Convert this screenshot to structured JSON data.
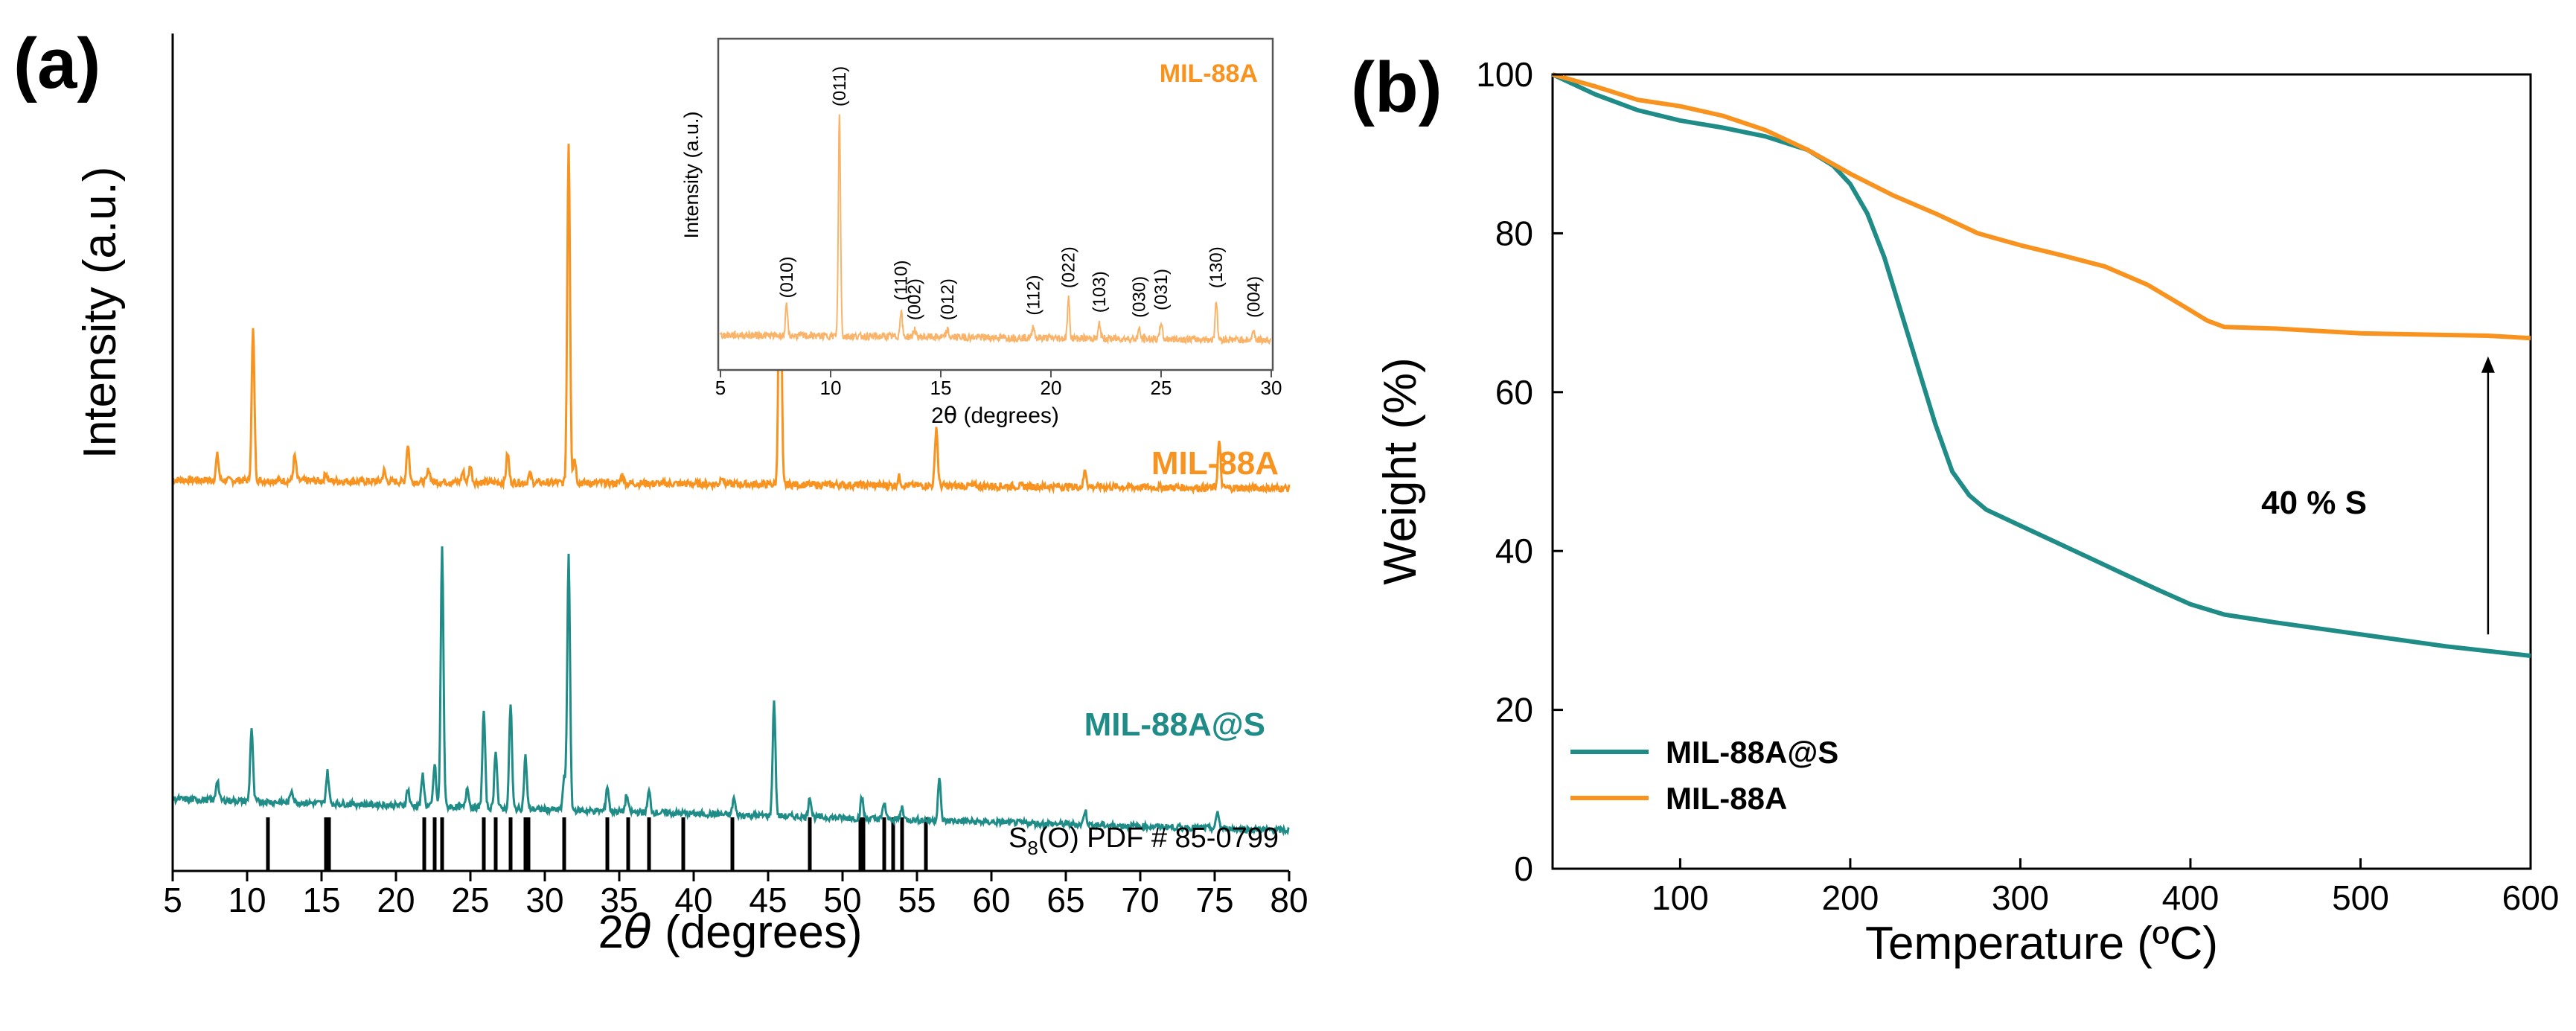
{
  "colors": {
    "orange": "#F7931E",
    "teal": "#1F8C87",
    "axis": "#000000",
    "inset_frame": "#555555",
    "inset_line": "#F9B46A"
  },
  "chart_data": [
    {
      "id": "a",
      "type": "line",
      "panel_label": "(a)",
      "xlabel_prefix": "2",
      "xlabel_symbol": "θ",
      "xlabel_suffix": " (degrees)",
      "ylabel": "Intensity (a.u.)",
      "xlim": [
        5,
        80
      ],
      "xticks": [
        5,
        10,
        15,
        20,
        25,
        30,
        35,
        40,
        45,
        50,
        55,
        60,
        65,
        70,
        75,
        80
      ],
      "y_units": "a.u. (normalized, offset stacked)",
      "series": [
        {
          "name": "MIL-88A",
          "label": "MIL-88A",
          "color": "#F7931E",
          "baseline": 1.8,
          "peaks": [
            {
              "x": 8.0,
              "h": 0.12
            },
            {
              "x": 10.4,
              "h": 0.72
            },
            {
              "x": 13.2,
              "h": 0.12
            },
            {
              "x": 15.3,
              "h": 0.04
            },
            {
              "x": 19.2,
              "h": 0.05
            },
            {
              "x": 20.8,
              "h": 0.18
            },
            {
              "x": 22.2,
              "h": 0.06
            },
            {
              "x": 24.5,
              "h": 0.05
            },
            {
              "x": 25.0,
              "h": 0.08
            },
            {
              "x": 27.5,
              "h": 0.14
            },
            {
              "x": 29.0,
              "h": 0.04
            },
            {
              "x": 31.6,
              "h": 1.62
            },
            {
              "x": 32.0,
              "h": 0.12
            },
            {
              "x": 35.2,
              "h": 0.04
            },
            {
              "x": 41.9,
              "h": 0.04
            },
            {
              "x": 45.8,
              "h": 1.5
            },
            {
              "x": 53.8,
              "h": 0.04
            },
            {
              "x": 56.3,
              "h": 0.28
            },
            {
              "x": 66.3,
              "h": 0.08
            },
            {
              "x": 75.3,
              "h": 0.22
            }
          ]
        },
        {
          "name": "MIL-88A@S",
          "label": "MIL-88A@S",
          "color": "#1F8C87",
          "baseline_start": 0.35,
          "baseline_end": 0.2,
          "peaks": [
            {
              "x": 8.0,
              "h": 0.1
            },
            {
              "x": 10.3,
              "h": 0.35
            },
            {
              "x": 13.0,
              "h": 0.06
            },
            {
              "x": 15.4,
              "h": 0.15
            },
            {
              "x": 20.8,
              "h": 0.08
            },
            {
              "x": 21.8,
              "h": 0.15
            },
            {
              "x": 22.6,
              "h": 0.2
            },
            {
              "x": 23.1,
              "h": 1.23
            },
            {
              "x": 24.8,
              "h": 0.1
            },
            {
              "x": 25.9,
              "h": 0.46
            },
            {
              "x": 26.7,
              "h": 0.28
            },
            {
              "x": 27.7,
              "h": 0.5
            },
            {
              "x": 28.7,
              "h": 0.25
            },
            {
              "x": 31.3,
              "h": 0.15
            },
            {
              "x": 31.6,
              "h": 1.22
            },
            {
              "x": 34.2,
              "h": 0.12
            },
            {
              "x": 35.5,
              "h": 0.08
            },
            {
              "x": 37.0,
              "h": 0.1
            },
            {
              "x": 42.7,
              "h": 0.08
            },
            {
              "x": 45.4,
              "h": 0.55
            },
            {
              "x": 47.8,
              "h": 0.1
            },
            {
              "x": 51.3,
              "h": 0.1
            },
            {
              "x": 52.8,
              "h": 0.08
            },
            {
              "x": 54.0,
              "h": 0.06
            },
            {
              "x": 56.5,
              "h": 0.2
            },
            {
              "x": 66.3,
              "h": 0.07
            },
            {
              "x": 75.2,
              "h": 0.08
            }
          ]
        }
      ],
      "reference": {
        "label_prefix": "S",
        "label_subscript": "8",
        "label_suffix": "(O) PDF # 85-0799",
        "positions": [
          11.4,
          15.3,
          15.5,
          21.9,
          22.6,
          23.1,
          25.9,
          26.7,
          27.7,
          28.7,
          28.9,
          31.3,
          34.2,
          35.6,
          37.0,
          39.3,
          42.6,
          47.8,
          51.2,
          51.4,
          52.8,
          53.4,
          54.0,
          55.6
        ]
      },
      "inset": {
        "title": "MIL-88A",
        "xlabel_prefix": "2",
        "xlabel_symbol": "θ",
        "xlabel_suffix": " (degrees)",
        "ylabel": "Intensity (a.u.)",
        "xlim": [
          5,
          30
        ],
        "xticks": [
          5,
          10,
          15,
          20,
          25,
          30
        ],
        "peaks": [
          {
            "x": 8.0,
            "h": 0.12,
            "label": "(010)"
          },
          {
            "x": 10.4,
            "h": 0.9,
            "label": "(011)"
          },
          {
            "x": 13.2,
            "h": 0.11,
            "label": "(110)"
          },
          {
            "x": 13.8,
            "h": 0.03,
            "label": "(002)"
          },
          {
            "x": 15.3,
            "h": 0.03,
            "label": "(012)"
          },
          {
            "x": 19.2,
            "h": 0.05,
            "label": "(112)"
          },
          {
            "x": 20.8,
            "h": 0.16,
            "label": "(022)"
          },
          {
            "x": 22.2,
            "h": 0.06,
            "label": "(103)"
          },
          {
            "x": 24.0,
            "h": 0.04,
            "label": "(030)"
          },
          {
            "x": 25.0,
            "h": 0.07,
            "label": "(031)"
          },
          {
            "x": 27.5,
            "h": 0.16,
            "label": "(130)"
          },
          {
            "x": 29.2,
            "h": 0.04,
            "label": "(004)"
          }
        ]
      }
    },
    {
      "id": "b",
      "type": "line",
      "panel_label": "(b)",
      "xlabel": "Temperature (ºC)",
      "ylabel": "Weight (%)",
      "xlim": [
        25,
        600
      ],
      "ylim": [
        0,
        100
      ],
      "xticks": [
        100,
        200,
        300,
        400,
        500,
        600
      ],
      "yticks": [
        0,
        20,
        40,
        60,
        80,
        100
      ],
      "series": [
        {
          "name": "MIL-88A@S",
          "color": "#1F8C87",
          "x": [
            25,
            50,
            75,
            100,
            125,
            150,
            175,
            190,
            200,
            210,
            220,
            230,
            240,
            250,
            260,
            270,
            280,
            300,
            320,
            340,
            360,
            380,
            400,
            420,
            450,
            500,
            550,
            600
          ],
          "y": [
            100,
            97.5,
            95.5,
            94.2,
            93.3,
            92.2,
            90.5,
            88.5,
            86.2,
            82.5,
            77,
            70,
            63,
            56,
            50,
            47,
            45.2,
            43.2,
            41.2,
            39.2,
            37.2,
            35.2,
            33.3,
            32,
            31,
            29.5,
            28,
            26.8
          ]
        },
        {
          "name": "MIL-88A",
          "color": "#F7931E",
          "x": [
            25,
            50,
            75,
            100,
            125,
            150,
            175,
            200,
            225,
            250,
            275,
            300,
            325,
            350,
            375,
            400,
            410,
            420,
            450,
            500,
            550,
            575,
            600
          ],
          "y": [
            100,
            98.5,
            96.8,
            96,
            94.8,
            93,
            90.5,
            87.5,
            84.8,
            82.5,
            80,
            78.5,
            77.2,
            75.8,
            73.5,
            70.3,
            69,
            68.2,
            68,
            67.4,
            67.2,
            67.1,
            66.8
          ]
        }
      ],
      "legend": {
        "placement": "bottom-left",
        "entries": [
          "MIL-88A@S",
          "MIL-88A"
        ]
      },
      "annotation": {
        "text": "40 % S",
        "arrow_x": 575,
        "arrow_from": 29.5,
        "arrow_to": 64.5
      }
    }
  ]
}
